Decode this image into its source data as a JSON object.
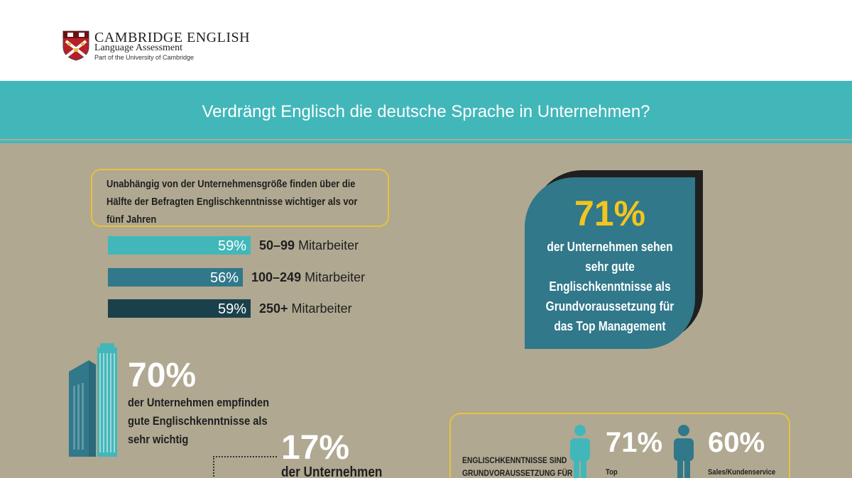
{
  "logo": {
    "brand": "CAMBRIDGE ENGLISH",
    "subtitle": "Language Assessment",
    "part_of": "Part of the University of Cambridge",
    "crest_icon": "cambridge-crest-icon"
  },
  "title": "Verdrängt Englisch die deutsche Sprache in Unternehmen?",
  "intro": "Unabhängig von der Unternehmensgröße finden über die Hälfte der Befragten Englischkenntnisse wichtiger als vor fünf Jahren",
  "chart_data": {
    "type": "bar",
    "orientation": "horizontal",
    "categories": [
      "50–99 Mitarbeiter",
      "100–249 Mitarbeiter",
      "250+ Mitarbeiter"
    ],
    "category_bold": [
      "50–99",
      "100–249",
      "250+"
    ],
    "category_rest": [
      " Mitarbeiter",
      " Mitarbeiter",
      " Mitarbeiter"
    ],
    "values": [
      59,
      56,
      59
    ],
    "value_labels": [
      "59%",
      "56%",
      "59%"
    ],
    "colors": [
      "#42b7ba",
      "#30788a",
      "#1a414b"
    ],
    "xlim": [
      0,
      100
    ]
  },
  "callout_top": {
    "percent": "71%",
    "text": "der Unternehmen sehen sehr gute Englischkenntnisse als Grundvoraussetzung für das Top Management"
  },
  "stat_70": {
    "percent": "70%",
    "text": "der Unternehmen empfinden gute Englischkenntnisse als sehr wichtig",
    "icon": "skyscraper-icon"
  },
  "stat_17": {
    "percent": "17%",
    "text": "der Unternehmen"
  },
  "requirement": {
    "heading_line1": "ENGLISCHKENNTNISSE SIND",
    "heading_line2": "GRUNDVORAUSSETZUNG FÜR",
    "items": [
      {
        "percent": "71%",
        "label": "Top",
        "color": "#42b7ba",
        "icon": "person-icon"
      },
      {
        "percent": "60%",
        "label": "Sales/Kundenservice",
        "color": "#30788a",
        "icon": "person-icon"
      }
    ]
  }
}
